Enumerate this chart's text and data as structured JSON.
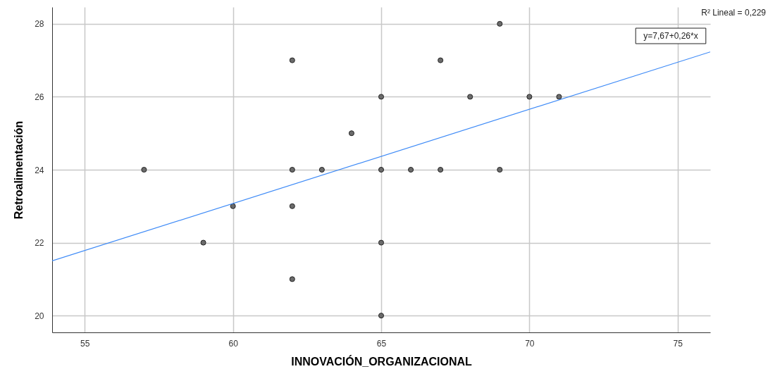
{
  "chart_data": {
    "type": "scatter",
    "xlabel": "INNOVACIÓN_ORGANIZACIONAL",
    "ylabel": "Retroalimentación",
    "xlim": [
      53.9,
      76.1
    ],
    "ylim": [
      19.54,
      28.46
    ],
    "xticks": [
      55,
      60,
      65,
      70,
      75
    ],
    "yticks": [
      20,
      22,
      24,
      26,
      28
    ],
    "grid": true,
    "series": [
      {
        "marker": "circle",
        "color": "#6b6b6b",
        "x": [
          57,
          59,
          60,
          62,
          62,
          62,
          62,
          63,
          64,
          65,
          65,
          65,
          65,
          66,
          67,
          67,
          68,
          69,
          69,
          70,
          71
        ],
        "values": [
          24,
          22,
          23,
          27,
          24,
          23,
          21,
          24,
          25,
          26,
          24,
          22,
          20,
          24,
          27,
          24,
          26,
          28,
          24,
          26,
          26
        ]
      },
      {
        "type": "line",
        "marker": "none",
        "color": "#3d8af7",
        "line_style": "solid",
        "x": [
          53.9,
          76.1
        ],
        "values": [
          21.5,
          27.23
        ]
      }
    ],
    "annotations": [
      "R² Lineal = 0,229",
      "y=7,67+0,26*x"
    ]
  }
}
